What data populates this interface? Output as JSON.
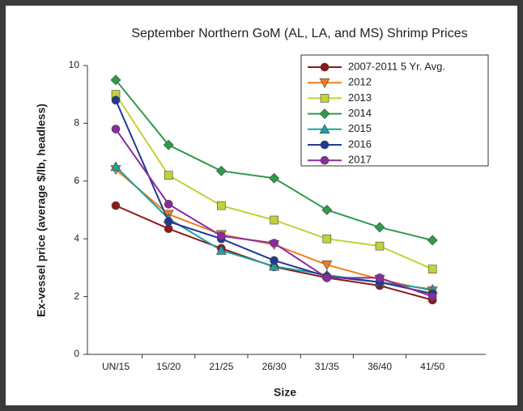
{
  "chart_data": {
    "type": "line",
    "title": "September Northern GoM (AL, LA, and MS) Shrimp Prices",
    "x_label": "Size",
    "y_label": "Ex-vessel price (average $/lb, headless)",
    "categories": [
      "UN/15",
      "15/20",
      "21/25",
      "26/30",
      "31/35",
      "36/40",
      "41/50"
    ],
    "ylim": [
      0,
      10
    ],
    "yticks": [
      0,
      2,
      4,
      6,
      8,
      10
    ],
    "grid": false,
    "legend": "upper right",
    "series": [
      {
        "name": "2007-2011 5 Yr. Avg.",
        "color": "#8b1a1a",
        "marker": "circle",
        "values": [
          5.15,
          4.35,
          3.67,
          3.03,
          2.65,
          2.38,
          1.88
        ]
      },
      {
        "name": "2012",
        "color": "#f07d1e",
        "marker": "triangle-down",
        "values": [
          6.4,
          4.85,
          4.15,
          3.8,
          3.1,
          2.6,
          2.2
        ]
      },
      {
        "name": "2013",
        "color": "#c3d13a",
        "marker": "square",
        "values": [
          9.0,
          6.2,
          5.15,
          4.65,
          4.0,
          3.75,
          2.95
        ]
      },
      {
        "name": "2014",
        "color": "#2e9b48",
        "marker": "diamond",
        "values": [
          9.5,
          7.25,
          6.35,
          6.1,
          5.0,
          4.4,
          3.95
        ]
      },
      {
        "name": "2015",
        "color": "#1fa0a0",
        "marker": "triangle-up",
        "values": [
          6.5,
          4.7,
          3.6,
          3.05,
          2.75,
          2.5,
          2.25
        ]
      },
      {
        "name": "2016",
        "color": "#1f3a93",
        "marker": "circle",
        "values": [
          8.8,
          4.6,
          4.0,
          3.25,
          2.7,
          2.5,
          2.1
        ]
      },
      {
        "name": "2017",
        "color": "#8a2ba0",
        "marker": "circle",
        "values": [
          7.8,
          5.2,
          4.1,
          3.85,
          2.65,
          2.65,
          2.0
        ]
      }
    ]
  }
}
